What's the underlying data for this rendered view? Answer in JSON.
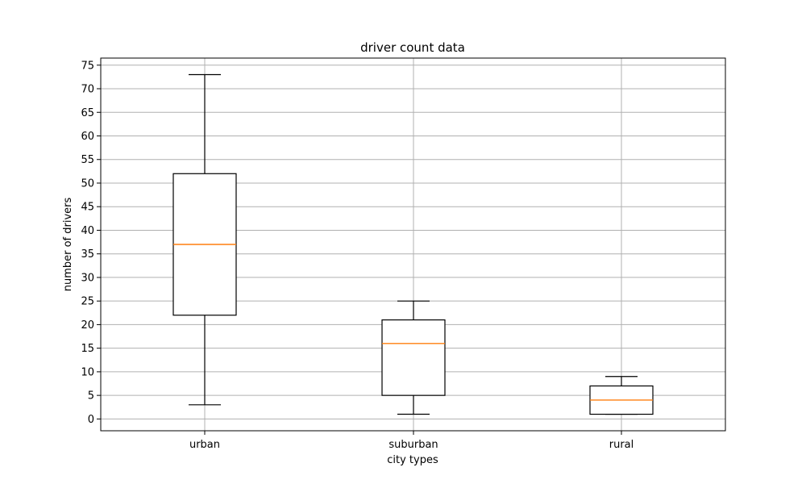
{
  "chart_data": {
    "type": "box",
    "title": "driver count data",
    "xlabel": "city types",
    "ylabel": "number of drivers",
    "categories": [
      "urban",
      "suburban",
      "rural"
    ],
    "boxes": [
      {
        "category": "urban",
        "whisker_low": 3,
        "q1": 22,
        "median": 37,
        "q3": 52,
        "whisker_high": 73
      },
      {
        "category": "suburban",
        "whisker_low": 1,
        "q1": 5,
        "median": 16,
        "q3": 21,
        "whisker_high": 25
      },
      {
        "category": "rural",
        "whisker_low": 1,
        "q1": 1,
        "median": 4,
        "q3": 7,
        "whisker_high": 9
      }
    ],
    "yticks": [
      "0",
      "5",
      "10",
      "15",
      "20",
      "25",
      "30",
      "35",
      "40",
      "45",
      "50",
      "55",
      "60",
      "65",
      "70",
      "75"
    ],
    "ylim": [
      -2.5,
      76.5
    ],
    "grid": true,
    "colors": {
      "box": "#000000",
      "median": "#ff7f0e",
      "grid": "#b0b0b0",
      "axes": "#000000"
    }
  }
}
